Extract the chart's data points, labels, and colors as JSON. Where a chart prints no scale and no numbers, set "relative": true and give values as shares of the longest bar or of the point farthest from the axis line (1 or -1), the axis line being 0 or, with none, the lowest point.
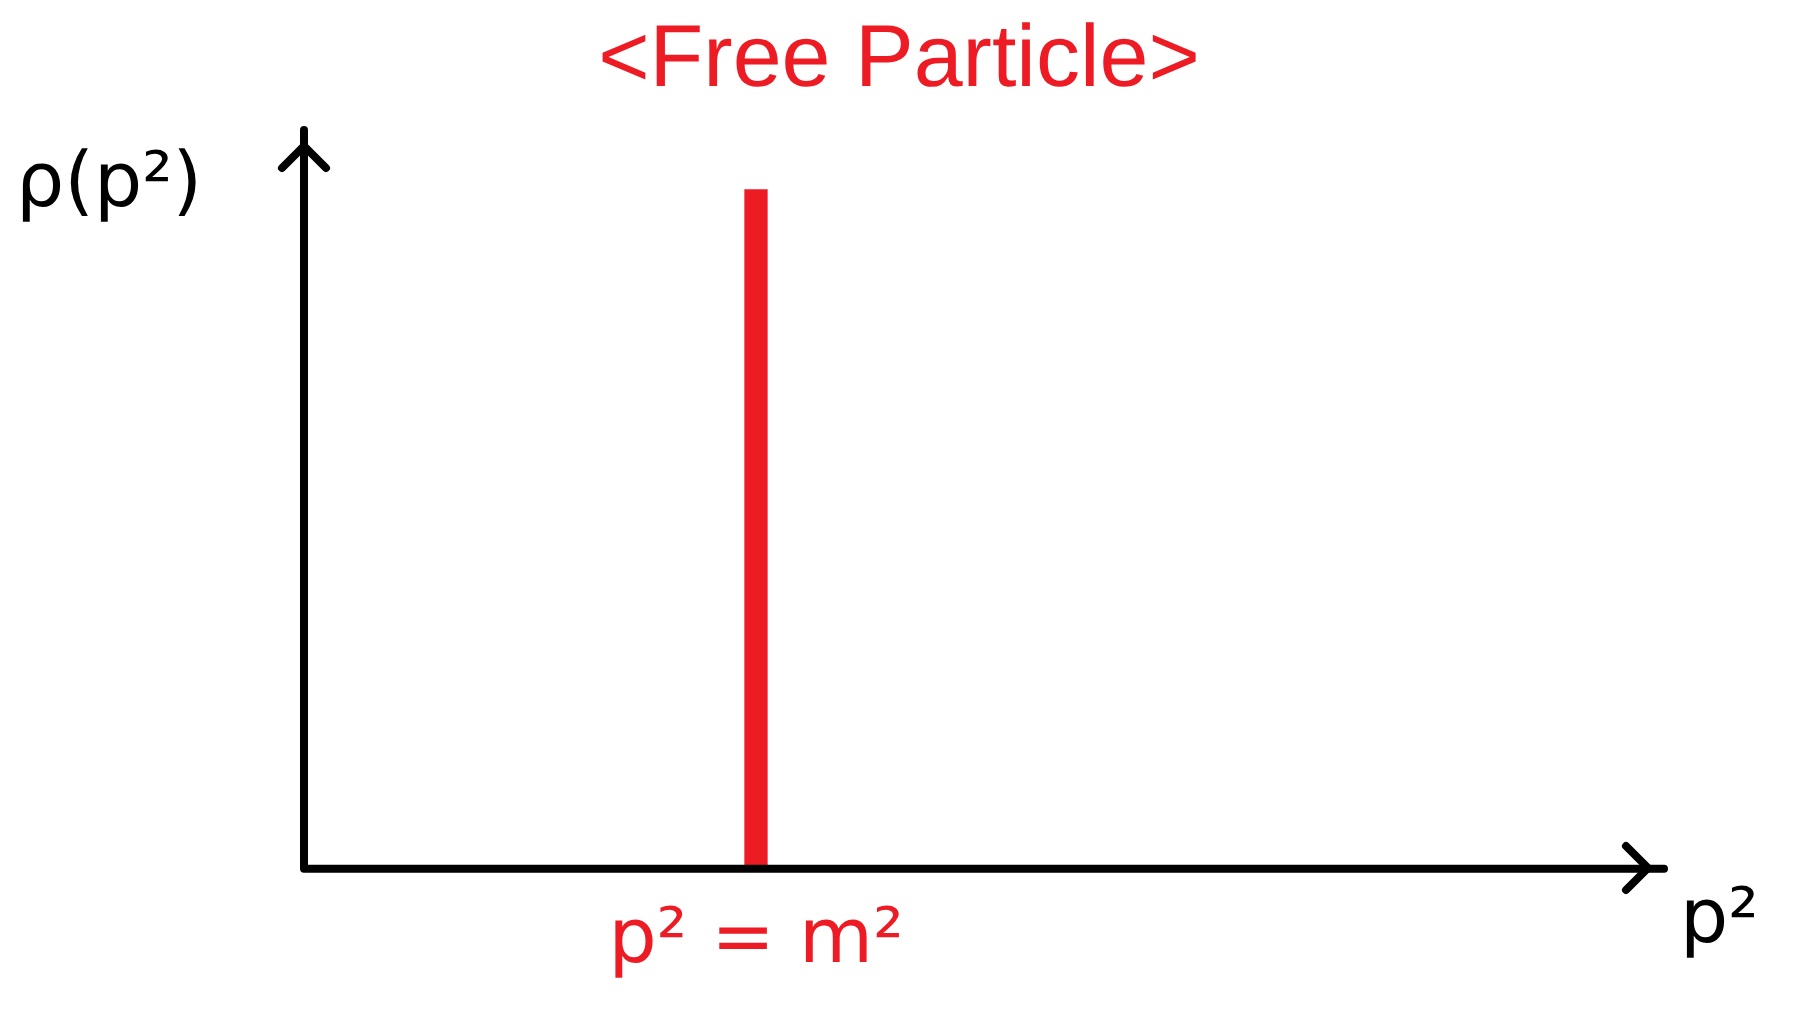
{
  "chart_data": {
    "type": "bar",
    "title": "<Free Particle>",
    "annotations": [
      "p²"
    ],
    "ylabel": "ρ(p²)",
    "categories": [
      "p² = m²"
    ],
    "values": [
      1
    ],
    "color": "#ed1c24",
    "relative": true,
    "grid": false,
    "legend": false
  }
}
